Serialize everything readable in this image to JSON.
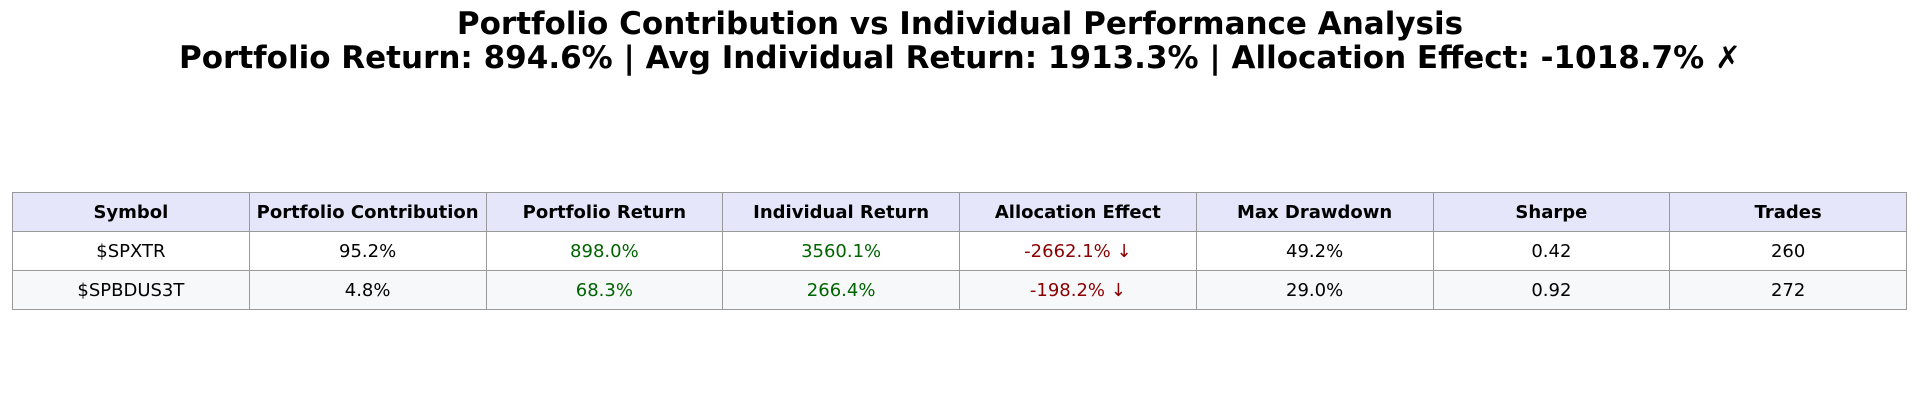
{
  "header": {
    "title": "Portfolio Contribution vs Individual Performance Analysis",
    "subtitle": "Portfolio Return: 894.6% | Avg Individual Return: 1913.3% | Allocation Effect: -1018.7% ✗"
  },
  "table": {
    "columns": [
      "Symbol",
      "Portfolio Contribution",
      "Portfolio Return",
      "Individual Return",
      "Allocation Effect",
      "Max Drawdown",
      "Sharpe",
      "Trades"
    ],
    "rows": [
      [
        "$SPXTR",
        "95.2%",
        "898.0%",
        "3560.1%",
        "-2662.1% ↓",
        "49.2%",
        "0.42",
        "260"
      ],
      [
        "$SPBDUS3T",
        "4.8%",
        "68.3%",
        "266.4%",
        "-198.2% ↓",
        "29.0%",
        "0.92",
        "272"
      ]
    ]
  }
}
